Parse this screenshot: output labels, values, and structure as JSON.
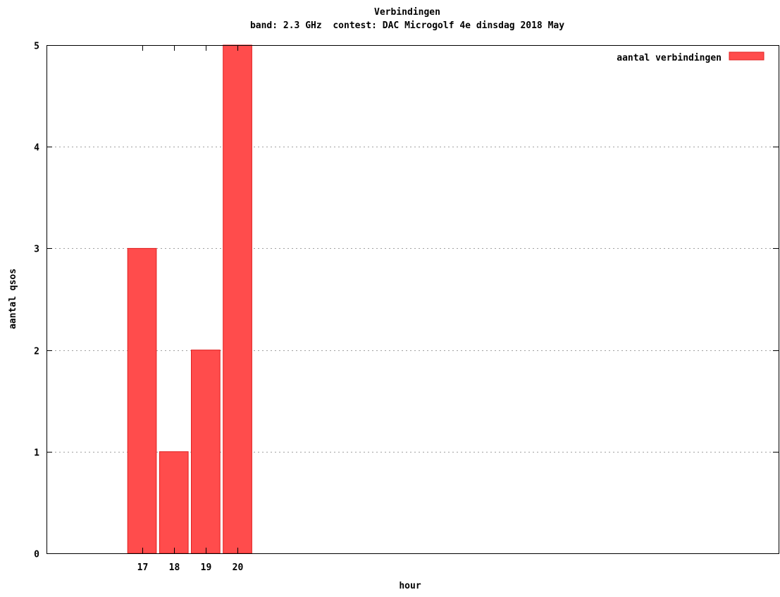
{
  "chart_data": {
    "type": "bar",
    "title": "Verbindingen",
    "subtitle": "band: 2.3 GHz  contest: DAC Microgolf 4e dinsdag 2018 May",
    "xlabel": "hour",
    "ylabel": "aantal qsos",
    "categories": [
      "17",
      "18",
      "19",
      "20"
    ],
    "x_positions": [
      17,
      18,
      19,
      20
    ],
    "xlim": [
      14,
      37
    ],
    "ylim": [
      0,
      5
    ],
    "yticks": [
      0,
      1,
      2,
      3,
      4,
      5
    ],
    "grid": true,
    "legend_position": "top-right",
    "series": [
      {
        "name": "aantal verbindingen",
        "values": [
          3,
          1,
          2,
          5
        ],
        "color": "#ff4c4c"
      }
    ]
  }
}
